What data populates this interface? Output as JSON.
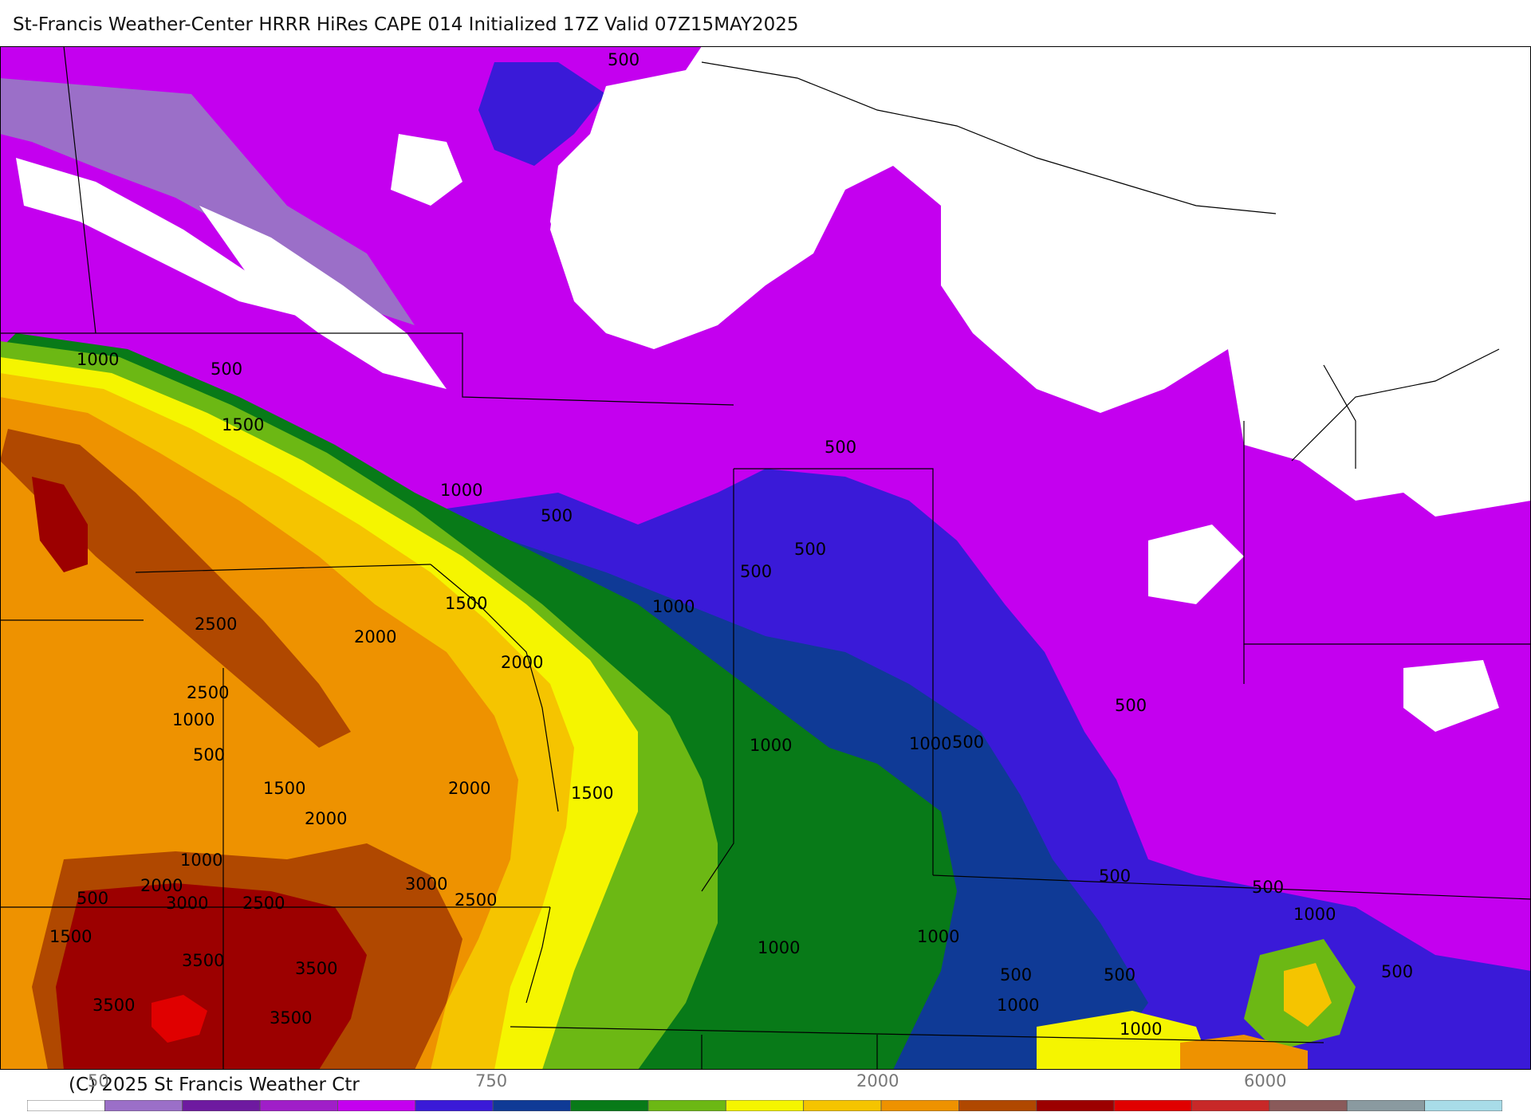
{
  "title": "St-Francis Weather-Center HRRR HiRes CAPE  014 Initialized  17Z Valid 07Z15MAY2025",
  "copyright": "(C) 2025 St Francis Weather Ctr",
  "colors": {
    "white": "#ffffff",
    "lavender": "#9b6fc8",
    "dark_purple": "#6e1aa0",
    "purple": "#a01ec8",
    "magenta": "#c400ef",
    "blue": "#3a1ad8",
    "navy": "#0f3a96",
    "dark_green": "#087a18",
    "green": "#6cb814",
    "yellow": "#f5f500",
    "gold": "#f5c400",
    "orange": "#ee9200",
    "brown": "#b04800",
    "dark_red": "#9c0000",
    "red": "#e00000",
    "crimson": "#c82828",
    "mauve": "#8a5a5a",
    "gray": "#8a9aa0",
    "light_blue": "#a8dce8"
  },
  "colorbar": {
    "label_750": "750",
    "label_2000": "2000",
    "label_6000": "6000",
    "label_left": "50"
  },
  "contour_labels": [
    {
      "text": "500"
    },
    {
      "text": "1000"
    },
    {
      "text": "500"
    },
    {
      "text": "1500"
    },
    {
      "text": "1000"
    },
    {
      "text": "500"
    },
    {
      "text": "500"
    },
    {
      "text": "500"
    },
    {
      "text": "500"
    },
    {
      "text": "1000"
    },
    {
      "text": "1500"
    },
    {
      "text": "2500"
    },
    {
      "text": "2000"
    },
    {
      "text": "2000"
    },
    {
      "text": "2500"
    },
    {
      "text": "1000"
    },
    {
      "text": "500"
    },
    {
      "text": "1500"
    },
    {
      "text": "2000"
    },
    {
      "text": "2000"
    },
    {
      "text": "1500"
    },
    {
      "text": "1000"
    },
    {
      "text": "1000"
    },
    {
      "text": "500"
    },
    {
      "text": "500"
    },
    {
      "text": "1000"
    },
    {
      "text": "2000"
    },
    {
      "text": "3000"
    },
    {
      "text": "2500"
    },
    {
      "text": "3000"
    },
    {
      "text": "2500"
    },
    {
      "text": "500"
    },
    {
      "text": "1500"
    },
    {
      "text": "3500"
    },
    {
      "text": "3500"
    },
    {
      "text": "3500"
    },
    {
      "text": "3500"
    },
    {
      "text": "1000"
    },
    {
      "text": "1000"
    },
    {
      "text": "500"
    },
    {
      "text": "500"
    },
    {
      "text": "1000"
    },
    {
      "text": "1000"
    },
    {
      "text": "500"
    },
    {
      "text": "500"
    },
    {
      "text": "1000"
    },
    {
      "text": "500"
    }
  ]
}
